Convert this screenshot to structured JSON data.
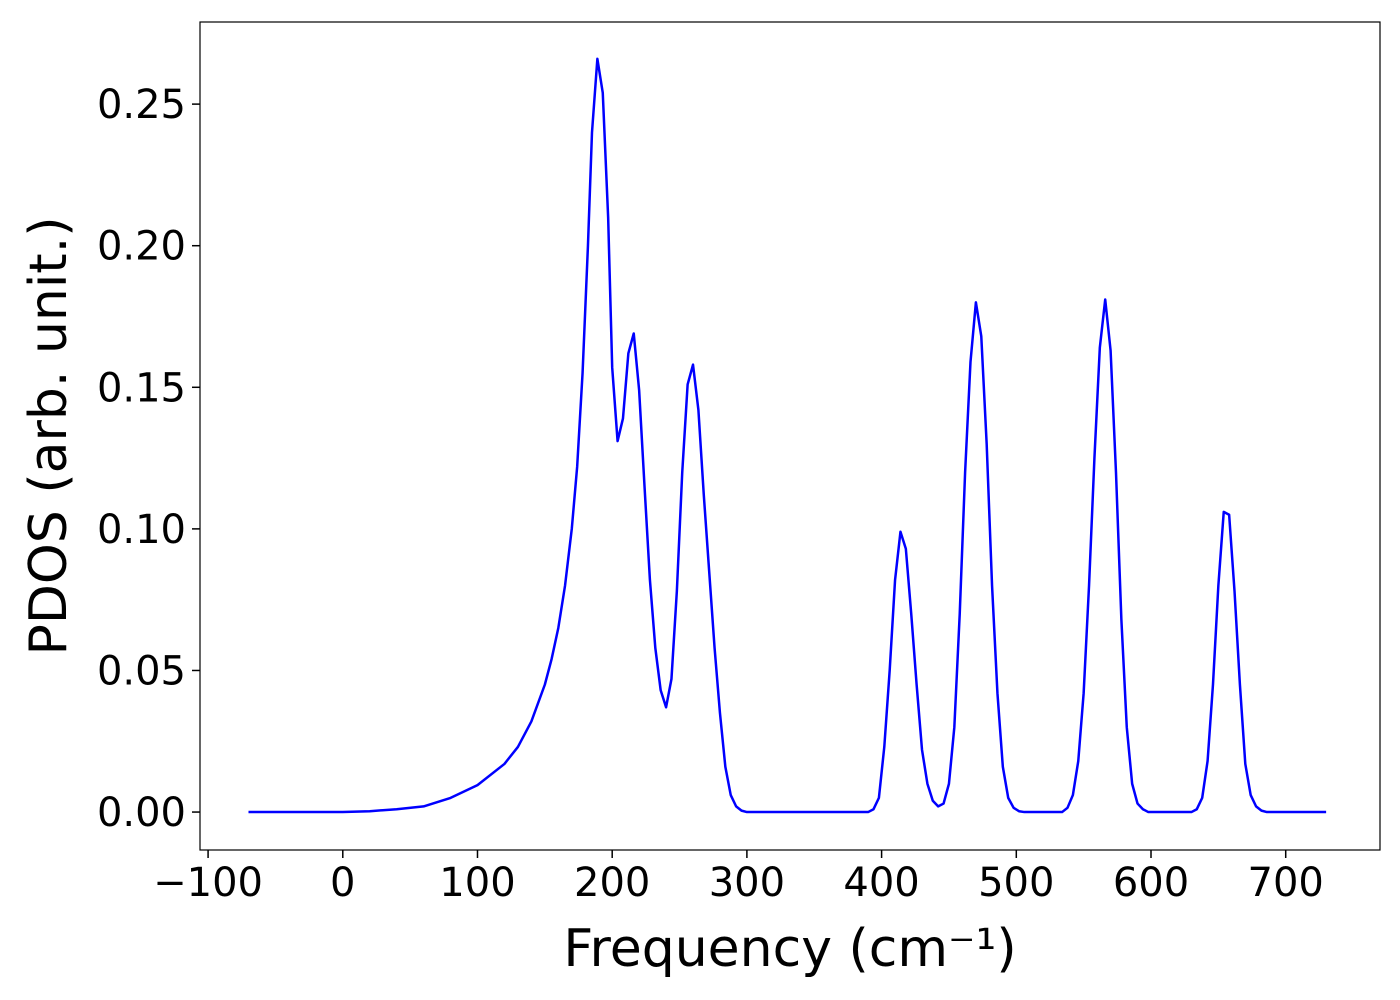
{
  "chart_data": {
    "type": "line",
    "xlabel": "Frequency (cm⁻¹)",
    "ylabel": "PDOS (arb. unit.)",
    "color": "#0000ff",
    "xlim": [
      -106,
      770
    ],
    "ylim": [
      -0.0134,
      0.279
    ],
    "xticks": [
      {
        "value": -100,
        "label": "−100"
      },
      0,
      100,
      200,
      300,
      400,
      500,
      600,
      700
    ],
    "yticks": [
      {
        "value": 0,
        "label": "0.00"
      },
      0.05,
      {
        "value": 0.1,
        "label": "0.10"
      },
      0.15,
      {
        "value": 0.2,
        "label": "0.20"
      },
      0.25
    ],
    "x": [
      -70,
      0,
      20,
      40,
      60,
      80,
      100,
      120,
      130,
      140,
      150,
      155,
      160,
      165,
      170,
      174,
      178,
      182,
      185,
      189,
      193,
      197,
      200,
      204,
      208,
      212,
      216,
      220,
      224,
      228,
      232,
      236,
      240,
      244,
      248,
      252,
      256,
      260,
      264,
      268,
      272,
      276,
      280,
      284,
      288,
      292,
      296,
      300,
      390,
      394,
      398,
      402,
      406,
      410,
      414,
      418,
      422,
      426,
      430,
      434,
      438,
      442,
      446,
      450,
      454,
      458,
      462,
      466,
      470,
      474,
      478,
      482,
      486,
      490,
      494,
      498,
      502,
      506,
      534,
      538,
      542,
      546,
      550,
      554,
      558,
      562,
      566,
      570,
      574,
      578,
      582,
      586,
      590,
      594,
      598,
      630,
      634,
      638,
      642,
      646,
      650,
      654,
      658,
      662,
      666,
      670,
      674,
      678,
      682,
      686,
      730
    ],
    "values": [
      0,
      0,
      0.0003,
      0.001,
      0.002,
      0.005,
      0.0095,
      0.017,
      0.023,
      0.032,
      0.045,
      0.054,
      0.065,
      0.08,
      0.1,
      0.122,
      0.155,
      0.2,
      0.24,
      0.266,
      0.254,
      0.21,
      0.157,
      0.131,
      0.139,
      0.162,
      0.169,
      0.149,
      0.115,
      0.082,
      0.058,
      0.043,
      0.037,
      0.047,
      0.078,
      0.12,
      0.151,
      0.158,
      0.142,
      0.112,
      0.085,
      0.058,
      0.035,
      0.016,
      0.006,
      0.002,
      0.0005,
      0,
      0,
      0.001,
      0.005,
      0.023,
      0.05,
      0.082,
      0.099,
      0.093,
      0.07,
      0.045,
      0.022,
      0.01,
      0.004,
      0.002,
      0.003,
      0.01,
      0.03,
      0.07,
      0.12,
      0.159,
      0.18,
      0.168,
      0.13,
      0.08,
      0.042,
      0.016,
      0.005,
      0.0015,
      0.0003,
      0,
      0,
      0.0015,
      0.006,
      0.018,
      0.042,
      0.08,
      0.125,
      0.164,
      0.181,
      0.163,
      0.12,
      0.068,
      0.03,
      0.01,
      0.003,
      0.001,
      0,
      0,
      0.001,
      0.005,
      0.018,
      0.045,
      0.08,
      0.106,
      0.105,
      0.078,
      0.045,
      0.017,
      0.006,
      0.002,
      0.0005,
      0,
      0
    ]
  }
}
